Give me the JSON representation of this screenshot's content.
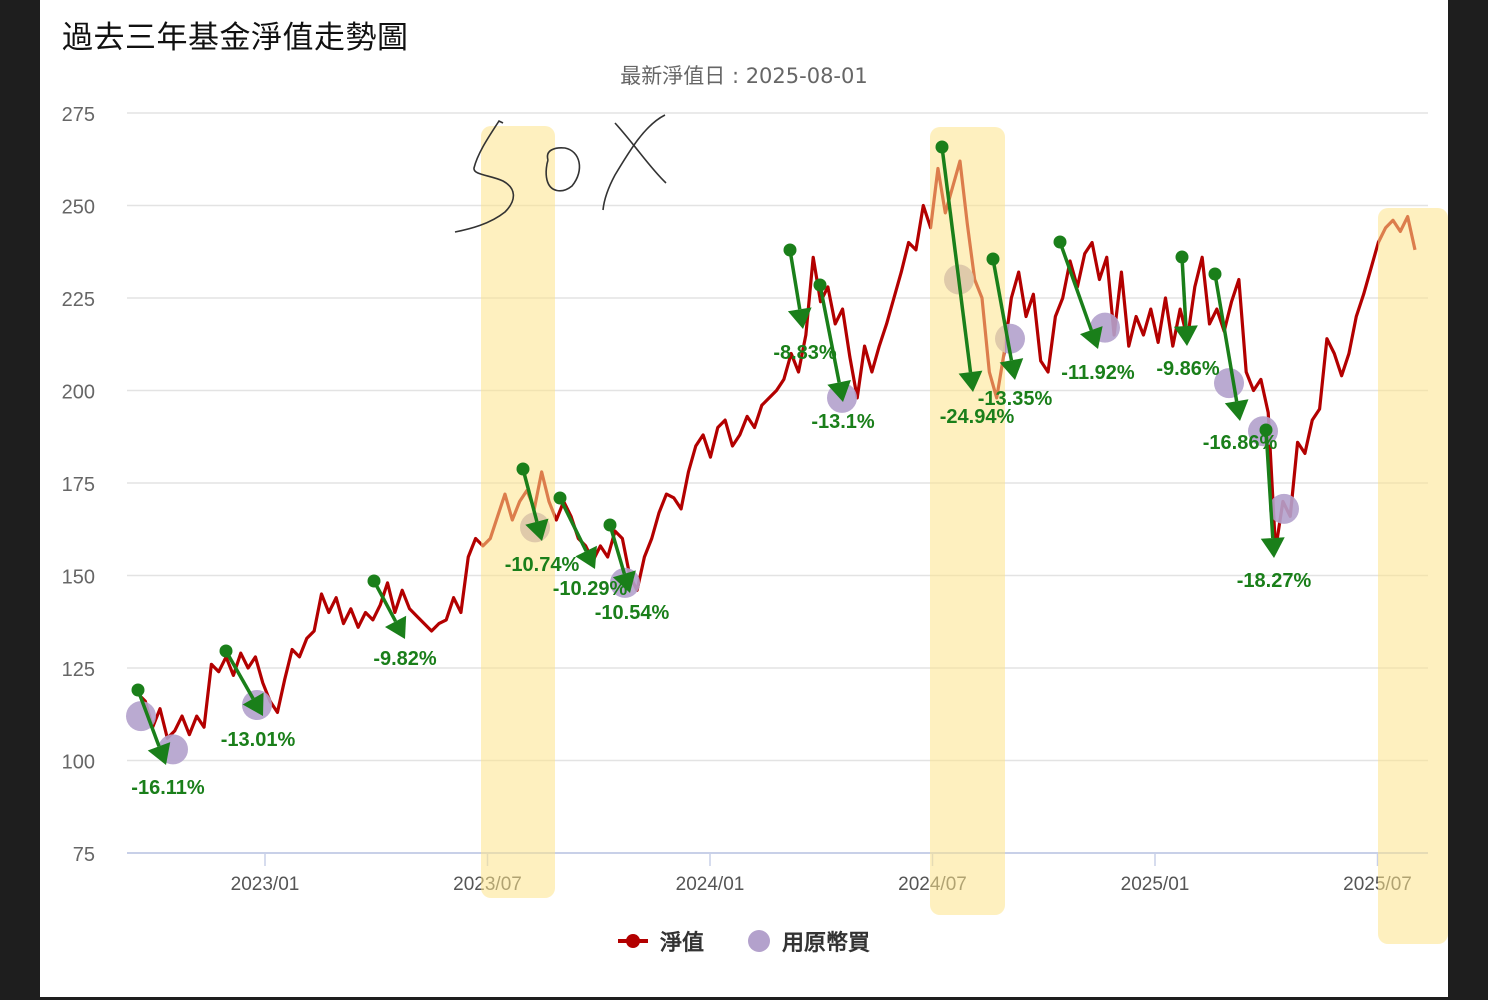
{
  "title": "過去三年基金淨值走勢圖",
  "subtitle": "最新淨值日 : 2025-08-01",
  "annotation_text": "SOX",
  "legend": [
    {
      "label": "淨值",
      "color": "#b30000",
      "icon": "line-dot-icon"
    },
    {
      "label": "用原幣買",
      "color": "#b3a1cc",
      "icon": "circle-icon"
    }
  ],
  "colors": {
    "nav_line": "#b30000",
    "buy_marker": "#b3a1cc",
    "drawdown_arrow": "#1a7f1a",
    "highlight": "#fde38a",
    "grid": "#e3e3e3",
    "axis": "#c8d0e8"
  },
  "chart_data": {
    "type": "line",
    "title": "過去三年基金淨值走勢圖",
    "subtitle": "最新淨值日 : 2025-08-01",
    "xlabel": "",
    "ylabel": "",
    "ylim": [
      75,
      275
    ],
    "yticks": [
      275,
      250,
      225,
      200,
      175,
      150,
      125,
      100,
      75
    ],
    "xticks": [
      "2023/01",
      "2023/07",
      "2024/01",
      "2024/07",
      "2025/01",
      "2025/07"
    ],
    "grid": true,
    "legend_position": "bottom",
    "series": [
      {
        "name": "淨值",
        "points": [
          [
            "2022-09",
            118
          ],
          [
            "2022-09b",
            116
          ],
          [
            "2022-10",
            109
          ],
          [
            "2022-10b",
            114
          ],
          [
            "2022-10c",
            106
          ],
          [
            "2022-10d",
            108
          ],
          [
            "2022-11",
            112
          ],
          [
            "2022-11b",
            107
          ],
          [
            "2022-11c",
            112
          ],
          [
            "2022-11d",
            109
          ],
          [
            "2022-11e",
            126
          ],
          [
            "2022-12",
            124
          ],
          [
            "2022-12b",
            128
          ],
          [
            "2022-12c",
            123
          ],
          [
            "2022-12d",
            129
          ],
          [
            "2022-12e",
            125
          ],
          [
            "2022-12f",
            128
          ],
          [
            "2023-01",
            121
          ],
          [
            "2023-01b",
            116
          ],
          [
            "2023-01c",
            113
          ],
          [
            "2023-01d",
            122
          ],
          [
            "2023-01e",
            130
          ],
          [
            "2023-02",
            128
          ],
          [
            "2023-02b",
            133
          ],
          [
            "2023-02c",
            135
          ],
          [
            "2023-02d",
            145
          ],
          [
            "2023-03",
            140
          ],
          [
            "2023-03b",
            144
          ],
          [
            "2023-03c",
            137
          ],
          [
            "2023-03d",
            141
          ],
          [
            "2023-03e",
            136
          ],
          [
            "2023-04",
            140
          ],
          [
            "2023-04b",
            138
          ],
          [
            "2023-04c",
            142
          ],
          [
            "2023-04d",
            148
          ],
          [
            "2023-04e",
            140
          ],
          [
            "2023-05",
            146
          ],
          [
            "2023-05b",
            141
          ],
          [
            "2023-05c",
            139
          ],
          [
            "2023-05d",
            137
          ],
          [
            "2023-05e",
            135
          ],
          [
            "2023-05f",
            137
          ],
          [
            "2023-06",
            138
          ],
          [
            "2023-06b",
            144
          ],
          [
            "2023-06c",
            140
          ],
          [
            "2023-06d",
            155
          ],
          [
            "2023-06e",
            160
          ],
          [
            "2023-06f",
            158
          ],
          [
            "2023-07",
            160
          ],
          [
            "2023-07b",
            166
          ],
          [
            "2023-07c",
            172
          ],
          [
            "2023-07d",
            165
          ],
          [
            "2023-07e",
            170
          ],
          [
            "2023-08",
            173
          ],
          [
            "2023-08b",
            168
          ],
          [
            "2023-08c",
            178
          ],
          [
            "2023-08d",
            170
          ],
          [
            "2023-08e",
            165
          ],
          [
            "2023-09",
            170
          ],
          [
            "2023-09b",
            166
          ],
          [
            "2023-09c",
            160
          ],
          [
            "2023-09d",
            158
          ],
          [
            "2023-09e",
            154
          ],
          [
            "2023-10",
            158
          ],
          [
            "2023-10b",
            155
          ],
          [
            "2023-10c",
            162
          ],
          [
            "2023-10d",
            160
          ],
          [
            "2023-10e",
            150
          ],
          [
            "2023-10f",
            146
          ],
          [
            "2023-11",
            155
          ],
          [
            "2023-11b",
            160
          ],
          [
            "2023-11c",
            167
          ],
          [
            "2023-11d",
            172
          ],
          [
            "2023-11e",
            171
          ],
          [
            "2023-12",
            168
          ],
          [
            "2023-12b",
            178
          ],
          [
            "2023-12c",
            185
          ],
          [
            "2023-12d",
            188
          ],
          [
            "2023-12e",
            182
          ],
          [
            "2024-01",
            190
          ],
          [
            "2024-01b",
            192
          ],
          [
            "2024-01c",
            185
          ],
          [
            "2024-01d",
            188
          ],
          [
            "2024-02",
            193
          ],
          [
            "2024-02b",
            190
          ],
          [
            "2024-02c",
            196
          ],
          [
            "2024-02d",
            198
          ],
          [
            "2024-02e",
            200
          ],
          [
            "2024-03",
            203
          ],
          [
            "2024-03b",
            210
          ],
          [
            "2024-03c",
            205
          ],
          [
            "2024-03d",
            215
          ],
          [
            "2024-03e",
            236
          ],
          [
            "2024-03f",
            224
          ],
          [
            "2024-04",
            228
          ],
          [
            "2024-04b",
            218
          ],
          [
            "2024-04c",
            222
          ],
          [
            "2024-04d",
            209
          ],
          [
            "2024-04e",
            198
          ],
          [
            "2024-05",
            212
          ],
          [
            "2024-05b",
            205
          ],
          [
            "2024-05c",
            212
          ],
          [
            "2024-05d",
            218
          ],
          [
            "2024-05e",
            225
          ],
          [
            "2024-05f",
            232
          ],
          [
            "2024-06",
            240
          ],
          [
            "2024-06b",
            238
          ],
          [
            "2024-06c",
            250
          ],
          [
            "2024-06d",
            244
          ],
          [
            "2024-06e",
            260
          ],
          [
            "2024-06f",
            248
          ],
          [
            "2024-07",
            255
          ],
          [
            "2024-07b",
            262
          ],
          [
            "2024-07c",
            245
          ],
          [
            "2024-07d",
            230
          ],
          [
            "2024-07e",
            225
          ],
          [
            "2024-08",
            205
          ],
          [
            "2024-08b",
            198
          ],
          [
            "2024-08c",
            210
          ],
          [
            "2024-08d",
            225
          ],
          [
            "2024-08e",
            232
          ],
          [
            "2024-09",
            220
          ],
          [
            "2024-09b",
            226
          ],
          [
            "2024-09c",
            208
          ],
          [
            "2024-09d",
            205
          ],
          [
            "2024-09e",
            220
          ],
          [
            "2024-10",
            225
          ],
          [
            "2024-10b",
            235
          ],
          [
            "2024-10c",
            228
          ],
          [
            "2024-10d",
            237
          ],
          [
            "2024-10e",
            240
          ],
          [
            "2024-11",
            230
          ],
          [
            "2024-11b",
            236
          ],
          [
            "2024-11c",
            215
          ],
          [
            "2024-11d",
            232
          ],
          [
            "2024-11e",
            212
          ],
          [
            "2024-12",
            220
          ],
          [
            "2024-12b",
            215
          ],
          [
            "2024-12c",
            222
          ],
          [
            "2024-12d",
            213
          ],
          [
            "2024-12e",
            225
          ],
          [
            "2025-01",
            212
          ],
          [
            "2025-01b",
            222
          ],
          [
            "2025-01c",
            214
          ],
          [
            "2025-01d",
            228
          ],
          [
            "2025-02",
            236
          ],
          [
            "2025-02b",
            218
          ],
          [
            "2025-02c",
            222
          ],
          [
            "2025-02d",
            216
          ],
          [
            "2025-03",
            224
          ],
          [
            "2025-03b",
            230
          ],
          [
            "2025-03c",
            205
          ],
          [
            "2025-03d",
            200
          ],
          [
            "2025-03e",
            203
          ],
          [
            "2025-04",
            194
          ],
          [
            "2025-04b",
            157
          ],
          [
            "2025-04c",
            170
          ],
          [
            "2025-04d",
            166
          ],
          [
            "2025-04e",
            186
          ],
          [
            "2025-05",
            183
          ],
          [
            "2025-05b",
            192
          ],
          [
            "2025-05c",
            195
          ],
          [
            "2025-05d",
            214
          ],
          [
            "2025-05e",
            210
          ],
          [
            "2025-06",
            204
          ],
          [
            "2025-06b",
            210
          ],
          [
            "2025-06c",
            220
          ],
          [
            "2025-06d",
            226
          ],
          [
            "2025-06e",
            233
          ],
          [
            "2025-07",
            240
          ],
          [
            "2025-07b",
            244
          ],
          [
            "2025-07c",
            246
          ],
          [
            "2025-07d",
            243
          ],
          [
            "2025-07e",
            247
          ],
          [
            "2025-08",
            238
          ]
        ]
      },
      {
        "name": "用原幣買",
        "markers": [
          [
            "2022-09",
            112
          ],
          [
            "2022-10",
            103
          ],
          [
            "2022-12",
            115
          ],
          [
            "2023-08",
            163
          ],
          [
            "2023-11",
            148
          ],
          [
            "2024-04",
            198
          ],
          [
            "2024-08",
            230
          ],
          [
            "2024-09",
            214
          ],
          [
            "2024-12",
            217
          ],
          [
            "2025-03",
            202
          ],
          [
            "2025-04",
            189
          ],
          [
            "2025-05",
            168
          ]
        ]
      }
    ],
    "drawdowns": [
      {
        "label": "-16.11%",
        "from": [
          "2022-09",
          119
        ],
        "to": [
          "2022-10",
          100
        ]
      },
      {
        "label": "-13.01%",
        "from": [
          "2022-11",
          130
        ],
        "to": [
          "2022-12",
          114
        ]
      },
      {
        "label": "-9.82%",
        "from": [
          "2023-04",
          149
        ],
        "to": [
          "2023-05",
          135
        ]
      },
      {
        "label": "-10.74%",
        "from": [
          "2023-08",
          179
        ],
        "to": [
          "2023-08",
          160
        ]
      },
      {
        "label": "-10.29%",
        "from": [
          "2023-09",
          171
        ],
        "to": [
          "2023-10",
          154
        ]
      },
      {
        "label": "-10.54%",
        "from": [
          "2023-10",
          164
        ],
        "to": [
          "2023-11",
          146
        ]
      },
      {
        "label": "-8.83%",
        "from": [
          "2024-03",
          238
        ],
        "to": [
          "2024-03",
          216
        ]
      },
      {
        "label": "-13.1%",
        "from": [
          "2024-03",
          229
        ],
        "to": [
          "2024-04",
          197
        ]
      },
      {
        "label": "-24.94%",
        "from": [
          "2024-07",
          266
        ],
        "to": [
          "2024-08",
          199
        ]
      },
      {
        "label": "-13.35%",
        "from": [
          "2024-08",
          236
        ],
        "to": [
          "2024-09",
          204
        ]
      },
      {
        "label": "-11.92%",
        "from": [
          "2024-10",
          240
        ],
        "to": [
          "2024-11",
          208
        ]
      },
      {
        "label": "-9.86%",
        "from": [
          "2025-01",
          236
        ],
        "to": [
          "2025-01",
          211
        ]
      },
      {
        "label": "-16.86%",
        "from": [
          "2025-02",
          232
        ],
        "to": [
          "2025-03",
          192
        ]
      },
      {
        "label": "-18.27%",
        "from": [
          "2025-04",
          190
        ],
        "to": [
          "2025-04",
          155
        ]
      }
    ],
    "highlight_periods": [
      "2023/07-2023/08",
      "2024/07-2024/08",
      "2025/07-2025/08"
    ]
  }
}
